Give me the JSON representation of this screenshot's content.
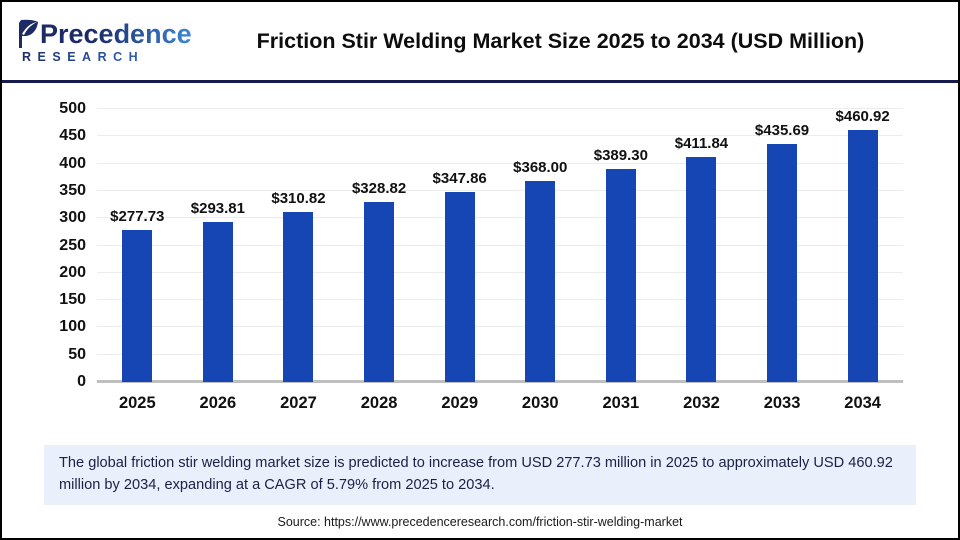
{
  "header": {
    "logo": {
      "brand": "Precedence",
      "sub": "RESEARCH"
    },
    "title": "Friction Stir Welding Market Size 2025 to 2034 (USD Million)"
  },
  "chart_data": {
    "type": "bar",
    "title": "Friction Stir Welding Market Size 2025 to 2034 (USD Million)",
    "categories": [
      "2025",
      "2026",
      "2027",
      "2028",
      "2029",
      "2030",
      "2031",
      "2032",
      "2033",
      "2034"
    ],
    "values": [
      277.73,
      293.81,
      310.82,
      328.82,
      347.86,
      368.0,
      389.3,
      411.84,
      435.69,
      460.92
    ],
    "value_labels": [
      "$277.73",
      "$293.81",
      "$310.82",
      "$328.82",
      "$347.86",
      "$368.00",
      "$389.30",
      "$411.84",
      "$435.69",
      "$460.92"
    ],
    "xlabel": "",
    "ylabel": "",
    "ylim": [
      0,
      500
    ],
    "y_ticks": [
      0,
      50,
      100,
      150,
      200,
      250,
      300,
      350,
      400,
      450,
      500
    ],
    "grid": true,
    "legend": false,
    "bar_color": "#1645b4"
  },
  "footer": {
    "note": "The global friction stir welding market size is predicted to increase from USD 277.73 million in 2025 to approximately USD 460.92 million by 2034, expanding at a CAGR of 5.79% from 2025 to 2034.",
    "source": "Source: https://www.precedenceresearch.com/friction-stir-welding-market"
  },
  "colors": {
    "bar": "#1645b4",
    "separator": "#151b4b",
    "note_bg": "#e9effb",
    "gridline": "#ececec",
    "baseline": "#bfbfbf"
  }
}
